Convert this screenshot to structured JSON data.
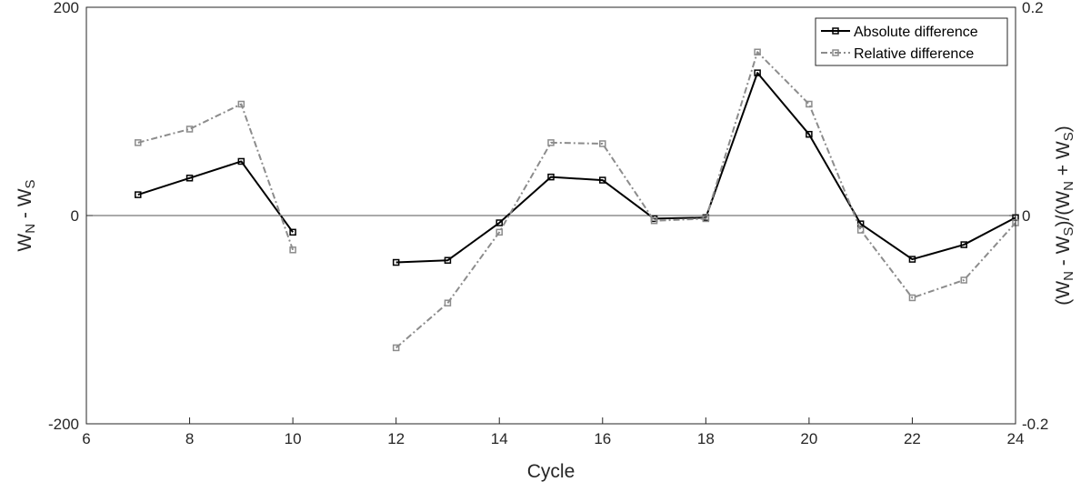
{
  "chart_data": {
    "type": "line",
    "xlabel": "Cycle",
    "xlim": [
      6,
      24
    ],
    "xticks": [
      6,
      8,
      10,
      12,
      14,
      16,
      18,
      20,
      22,
      24
    ],
    "ylabel_left": {
      "main": "W",
      "parts": [
        {
          "text": "N",
          "sub": true
        },
        {
          "text": " - W",
          "sub": false
        },
        {
          "text": "S",
          "sub": true
        }
      ]
    },
    "ylim_left": [
      -200,
      200
    ],
    "yticks_left": [
      -200,
      0,
      200
    ],
    "ylabel_right": {
      "parts": [
        {
          "text": "(W",
          "sub": false
        },
        {
          "text": "N",
          "sub": true
        },
        {
          "text": " - W",
          "sub": false
        },
        {
          "text": "S",
          "sub": true
        },
        {
          "text": ")/(W",
          "sub": false
        },
        {
          "text": "N",
          "sub": true
        },
        {
          "text": " + W",
          "sub": false
        },
        {
          "text": "S",
          "sub": true
        },
        {
          "text": ")",
          "sub": false
        }
      ]
    },
    "ylim_right": [
      -0.2,
      0.2
    ],
    "yticks_right": [
      "-0.2",
      "0",
      "0.2"
    ],
    "zero_line": true,
    "legend": {
      "location": "top-right"
    },
    "series": [
      {
        "name": "Absolute difference",
        "axis": "left",
        "color": "#000000",
        "dash": "solid",
        "segments": [
          [
            [
              7,
              20
            ],
            [
              8,
              36
            ],
            [
              9,
              52
            ],
            [
              10,
              -16
            ]
          ],
          [
            [
              12,
              -45
            ],
            [
              13,
              -43
            ],
            [
              14,
              -7
            ],
            [
              15,
              37
            ],
            [
              16,
              34
            ],
            [
              17,
              -3
            ],
            [
              18,
              -2
            ],
            [
              19,
              137
            ],
            [
              20,
              78
            ],
            [
              21,
              -8
            ],
            [
              22,
              -42
            ],
            [
              23,
              -28
            ],
            [
              24,
              -2
            ]
          ]
        ]
      },
      {
        "name": "Relative difference",
        "axis": "right",
        "color": "#8c8c8c",
        "dash": "dashdot",
        "segments": [
          [
            [
              7,
              0.07
            ],
            [
              8,
              0.083
            ],
            [
              9,
              0.107
            ],
            [
              10,
              -0.033
            ]
          ],
          [
            [
              12,
              -0.127
            ],
            [
              13,
              -0.084
            ],
            [
              14,
              -0.016
            ],
            [
              15,
              0.07
            ],
            [
              16,
              0.069
            ],
            [
              17,
              -0.005
            ],
            [
              18,
              -0.003
            ],
            [
              19,
              0.157
            ],
            [
              20,
              0.107
            ],
            [
              21,
              -0.014
            ],
            [
              22,
              -0.079
            ],
            [
              23,
              -0.062
            ],
            [
              24,
              -0.007
            ]
          ]
        ]
      }
    ]
  }
}
